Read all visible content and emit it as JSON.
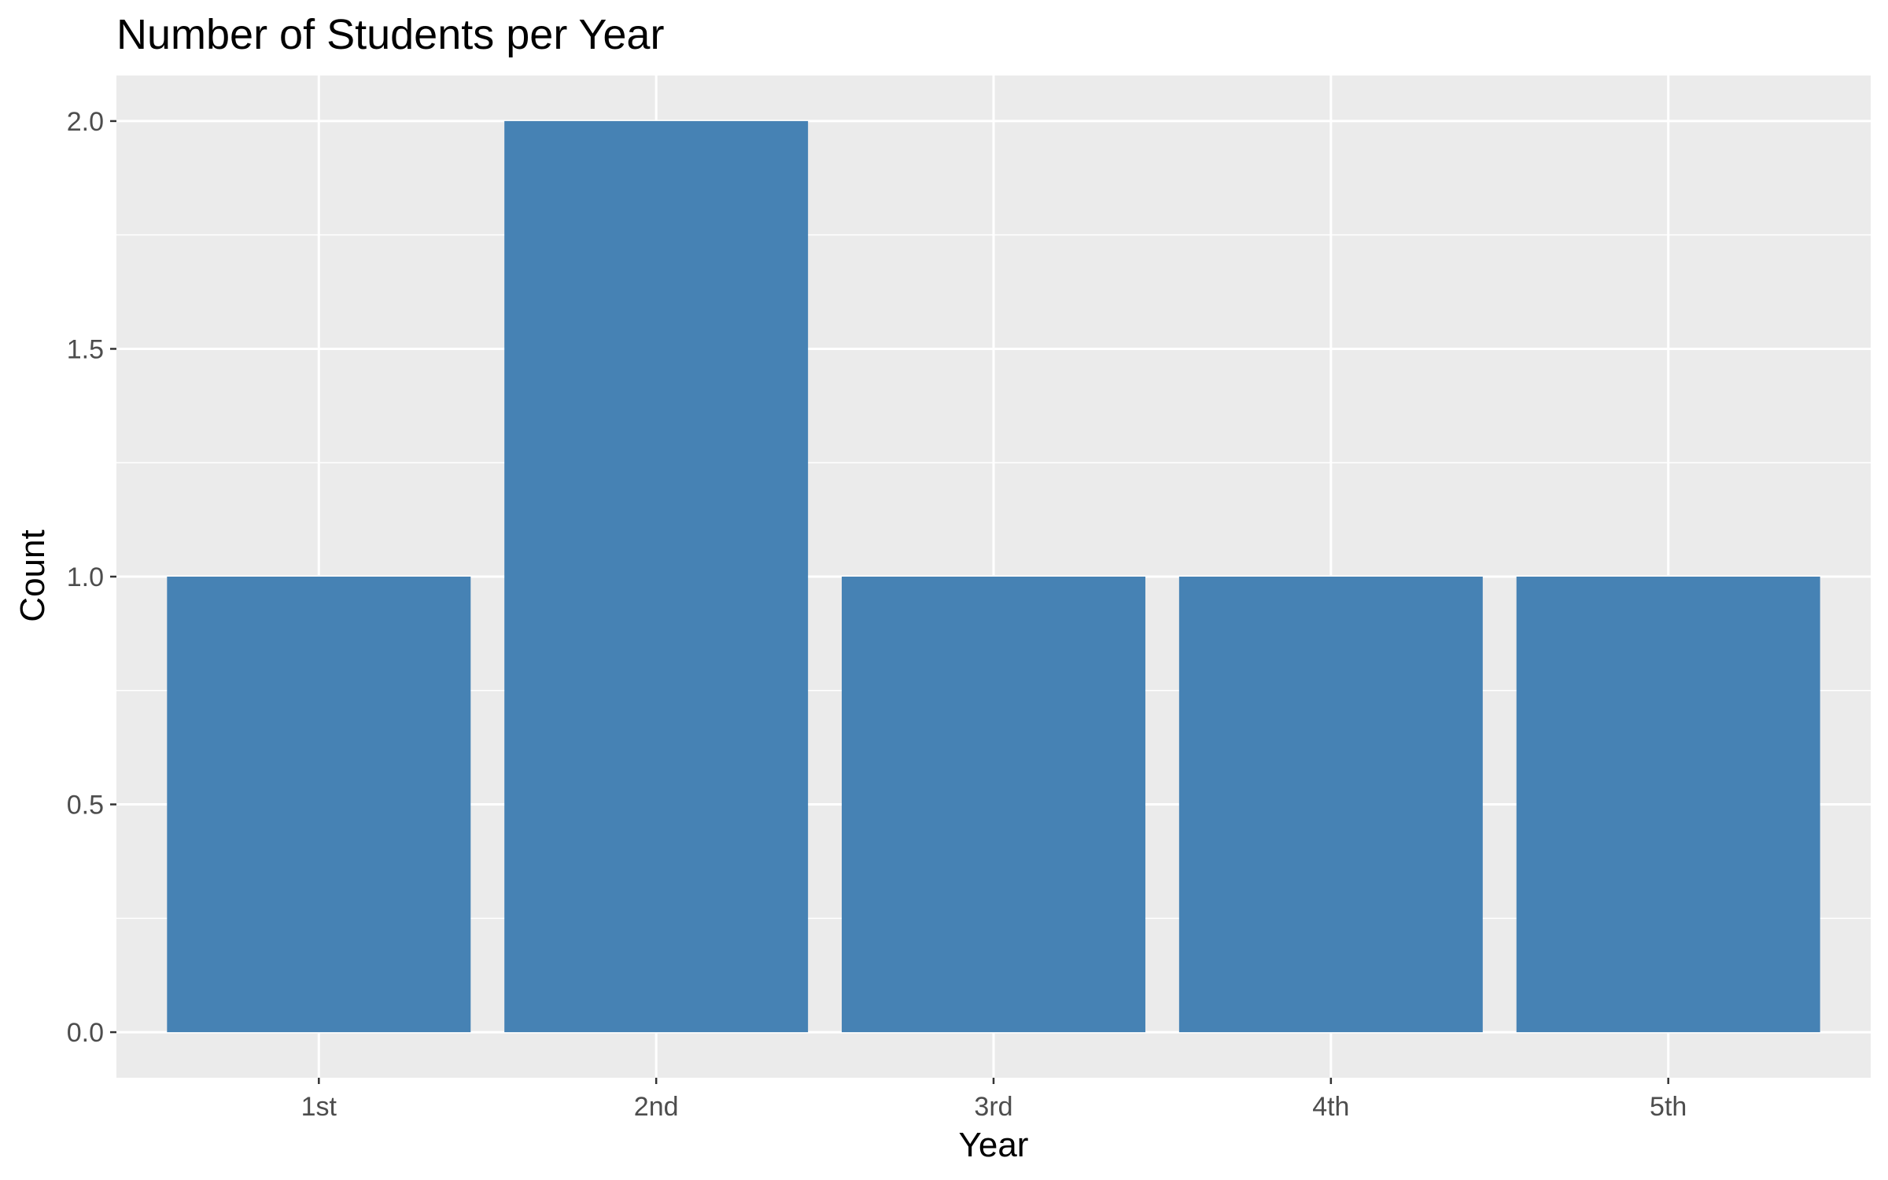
{
  "chart_data": {
    "type": "bar",
    "title": "Number of Students per Year",
    "xlabel": "Year",
    "ylabel": "Count",
    "categories": [
      "1st",
      "2nd",
      "3rd",
      "4th",
      "5th"
    ],
    "values": [
      1,
      2,
      1,
      1,
      1
    ],
    "ylim": [
      -0.1,
      2.1
    ],
    "yticks": [
      0.0,
      0.5,
      1.0,
      1.5,
      2.0
    ],
    "ytick_labels": [
      "0.0",
      "0.5",
      "1.0",
      "1.5",
      "2.0"
    ],
    "grid": true,
    "legend": "none",
    "colors": {
      "bar": "#4682B4",
      "panel_background": "#EBEBEB",
      "grid": "#FFFFFF",
      "tick": "#333333"
    }
  }
}
